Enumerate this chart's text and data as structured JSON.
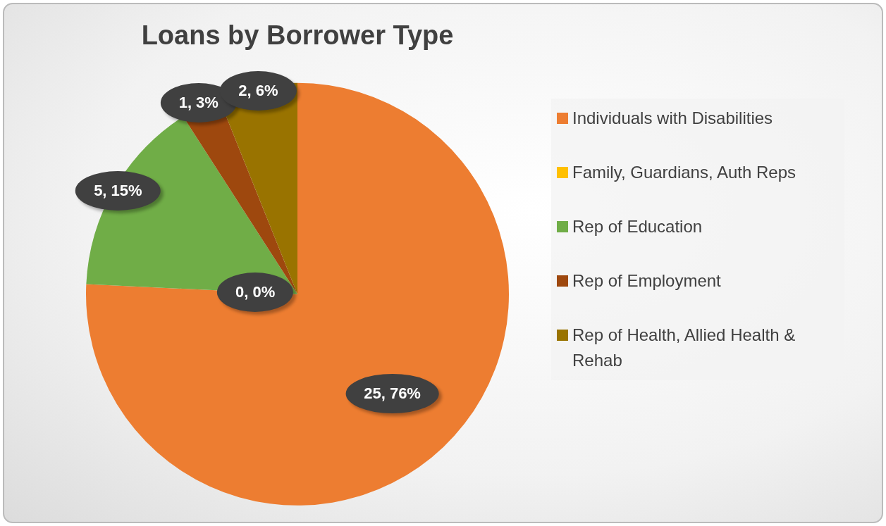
{
  "chart_data": {
    "type": "pie",
    "title": "Loans by Borrower Type",
    "categories": [
      "Individuals with Disabilities",
      "Family, Guardians, Auth Reps",
      "Rep of Education",
      "Rep of Employment",
      "Rep of Health, Allied Health & Rehab"
    ],
    "values": [
      25,
      0,
      5,
      1,
      2
    ],
    "colors": [
      "#ed7d31",
      "#ffc000",
      "#70ad47",
      "#9e480e",
      "#997300"
    ],
    "value_labels": [
      "25, 76%",
      "0, 0%",
      "5, 15%",
      "1, 3%",
      "2, 6%"
    ],
    "legend": "right"
  }
}
